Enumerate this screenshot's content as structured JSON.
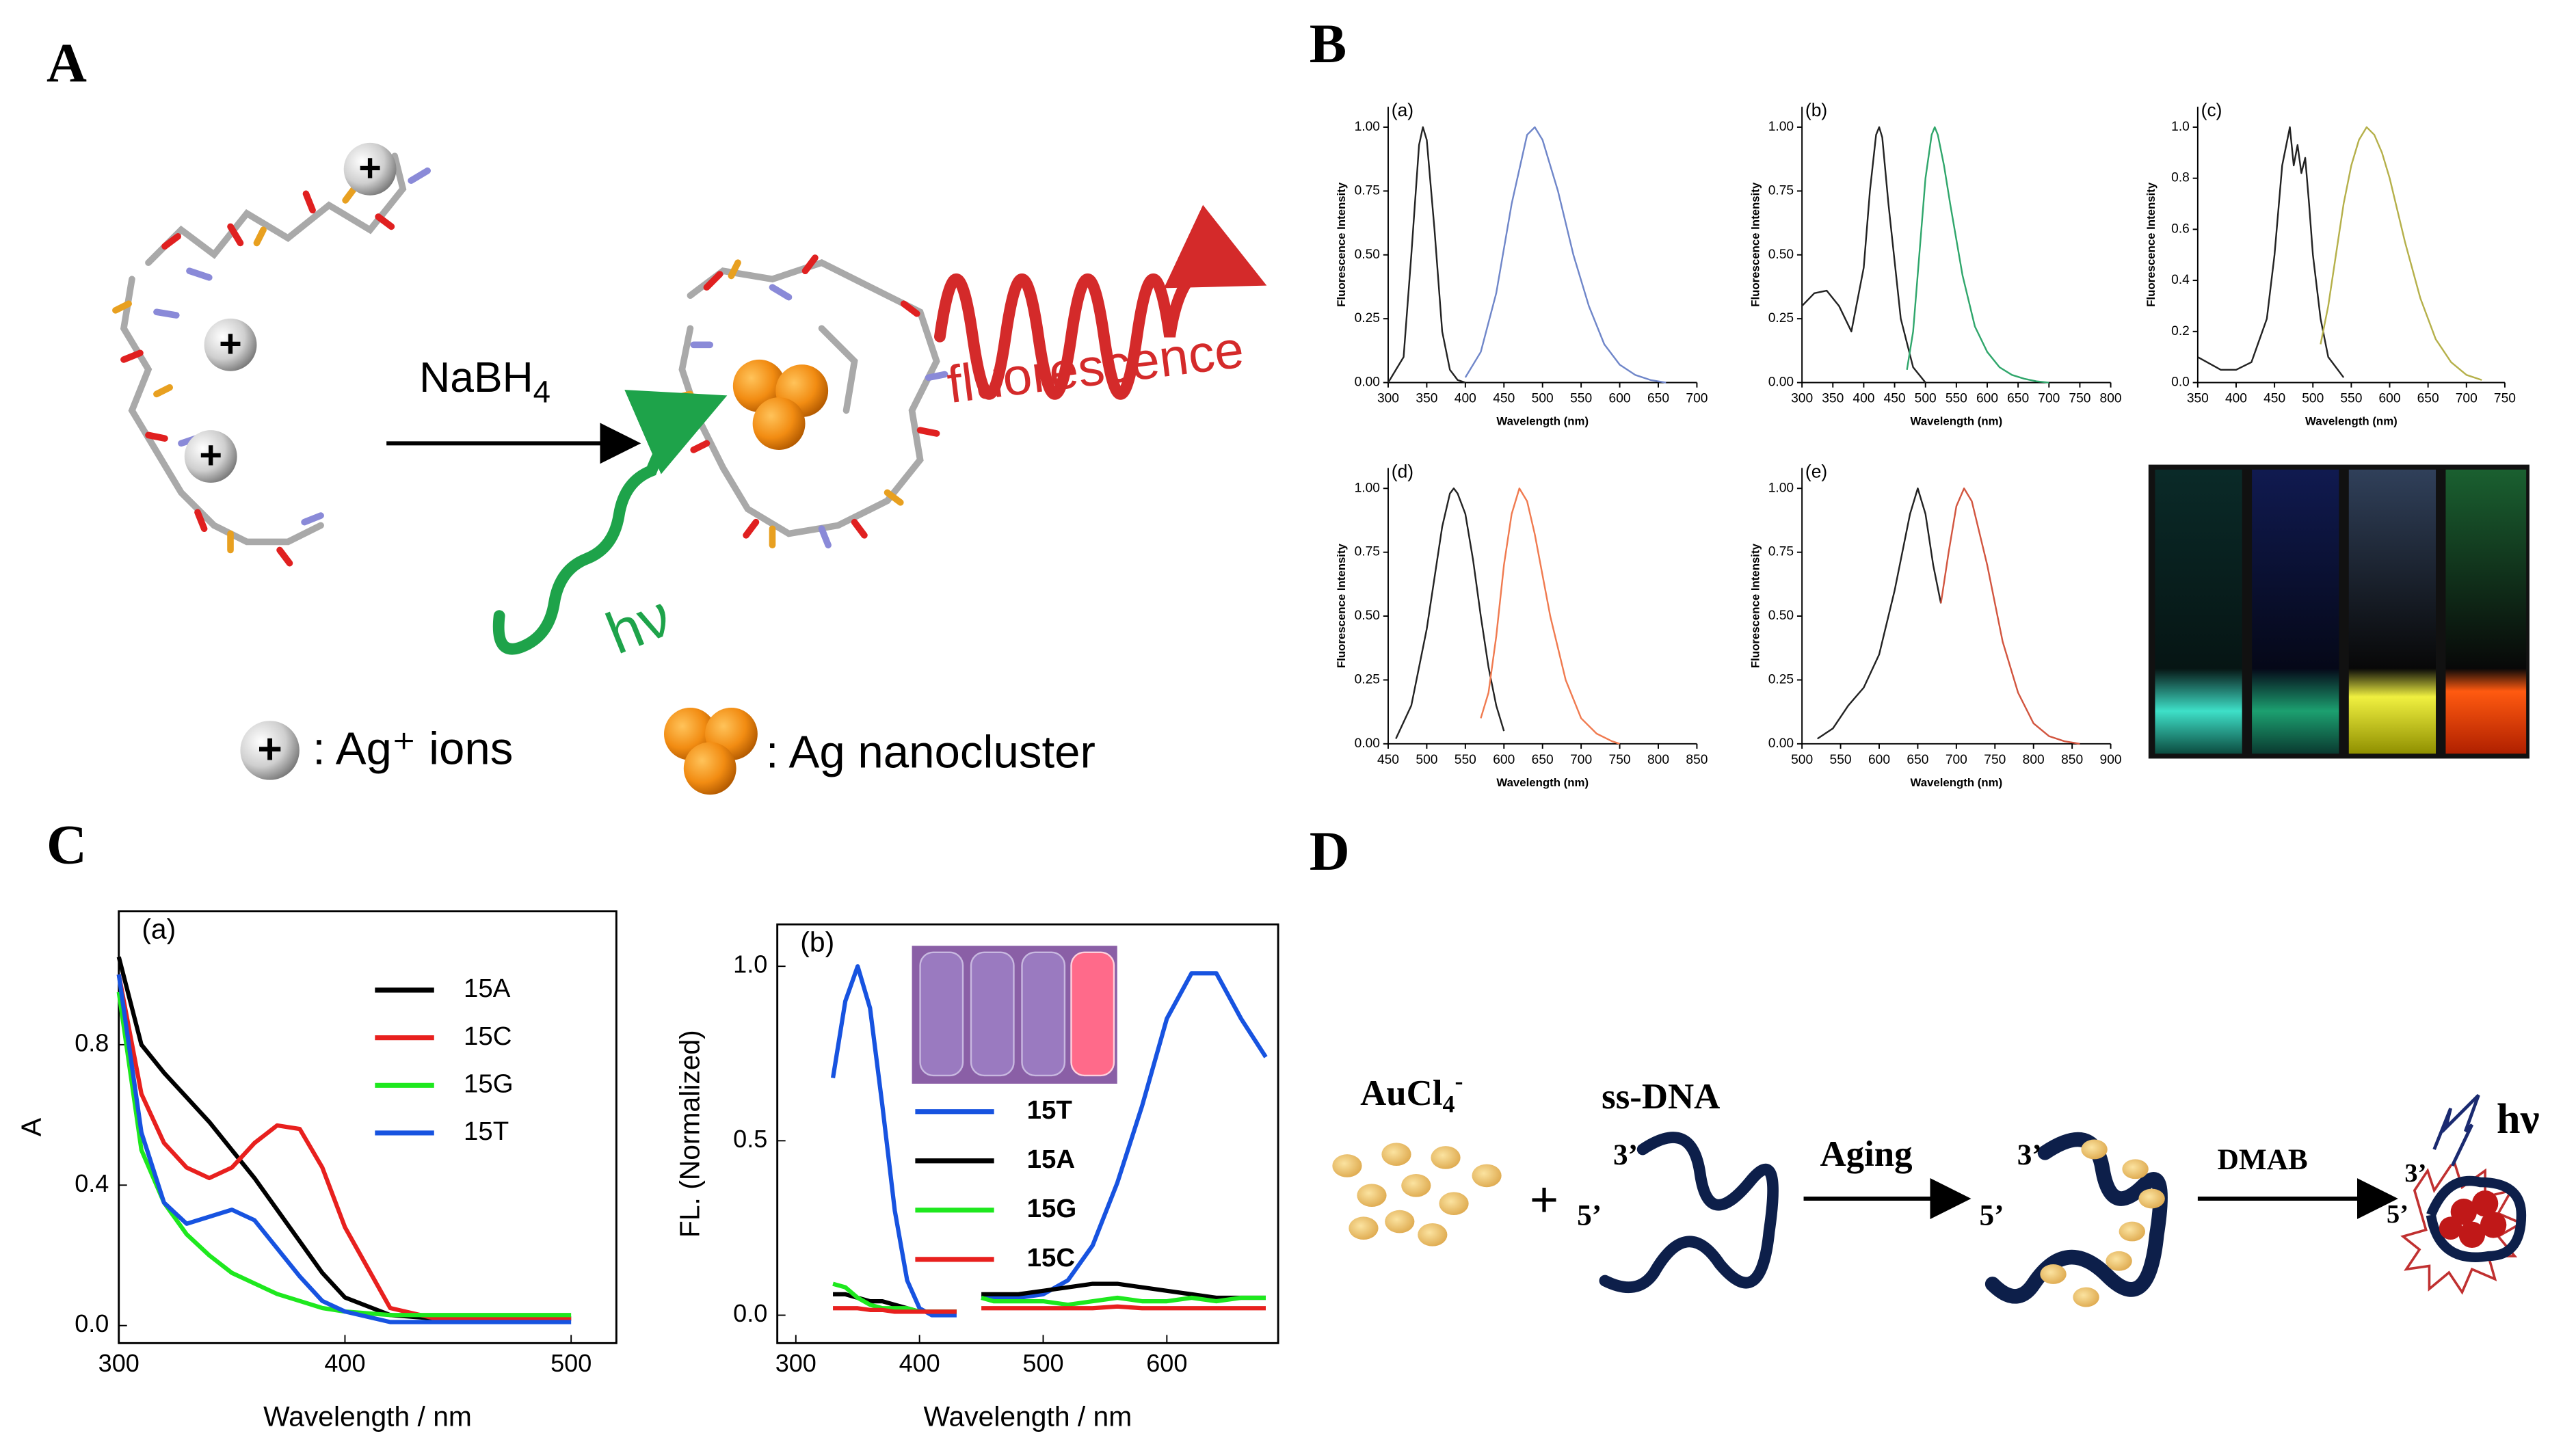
{
  "panel_labels": [
    "A",
    "B",
    "C",
    "D"
  ],
  "panel_a": {
    "reagent": {
      "main": "NaBH",
      "sub": "4"
    },
    "emission": "fluorescence",
    "excitation": "hν",
    "ion_symbol": "+",
    "ion_legend": ": Ag⁺ ions",
    "cluster_legend": ": Ag nanocluster"
  },
  "panel_d": {
    "reagent": {
      "main": "AuCl",
      "sub": "4",
      "sup": "-"
    },
    "plus": "+",
    "strand_label": "ss-DNA",
    "end_3": "3’",
    "end_5": "5’",
    "step1": "Aging",
    "step2": "DMAB",
    "emission": "hν"
  },
  "chart_data": [
    {
      "type": "line",
      "panel_label": "(a)",
      "xlabel": "Wavelength (nm)",
      "ylabel": "Fluorescence Intensity",
      "xlim": [
        300,
        700
      ],
      "xticks": [
        300,
        350,
        400,
        450,
        500,
        550,
        600,
        650,
        700
      ],
      "ylim": [
        0,
        1.08
      ],
      "yticks": [
        {
          "value": 0,
          "label": "0.00"
        },
        {
          "value": 0.25,
          "label": "0.25"
        },
        {
          "value": 0.5,
          "label": "0.50"
        },
        {
          "value": 0.75,
          "label": "0.75"
        },
        {
          "value": 1,
          "label": "1.00"
        }
      ],
      "series": [
        {
          "color": "#222222",
          "x": [
            300,
            320,
            330,
            340,
            345,
            350,
            360,
            370,
            380,
            390,
            400
          ],
          "values": [
            0,
            0.1,
            0.5,
            0.93,
            1.0,
            0.95,
            0.6,
            0.2,
            0.05,
            0.01,
            0
          ]
        },
        {
          "color": "#6f86c9",
          "x": [
            400,
            420,
            440,
            460,
            480,
            490,
            500,
            520,
            540,
            560,
            580,
            600,
            620,
            640,
            660
          ],
          "values": [
            0.02,
            0.12,
            0.35,
            0.7,
            0.97,
            1.0,
            0.95,
            0.75,
            0.5,
            0.3,
            0.15,
            0.07,
            0.03,
            0.01,
            0
          ]
        }
      ]
    },
    {
      "type": "line",
      "panel_label": "(b)",
      "xlabel": "Wavelength (nm)",
      "ylabel": "Fluorescence Intensity",
      "xlim": [
        300,
        800
      ],
      "xticks": [
        300,
        350,
        400,
        450,
        500,
        550,
        600,
        650,
        700,
        750,
        800
      ],
      "ylim": [
        0,
        1.08
      ],
      "yticks": [
        {
          "value": 0,
          "label": "0.00"
        },
        {
          "value": 0.25,
          "label": "0.25"
        },
        {
          "value": 0.5,
          "label": "0.50"
        },
        {
          "value": 0.75,
          "label": "0.75"
        },
        {
          "value": 1,
          "label": "1.00"
        }
      ],
      "series": [
        {
          "color": "#222222",
          "x": [
            300,
            320,
            340,
            360,
            380,
            400,
            410,
            420,
            425,
            430,
            440,
            460,
            480,
            500
          ],
          "values": [
            0.3,
            0.35,
            0.36,
            0.3,
            0.2,
            0.45,
            0.75,
            0.97,
            1.0,
            0.96,
            0.7,
            0.25,
            0.06,
            0
          ]
        },
        {
          "color": "#2fa66b",
          "x": [
            470,
            480,
            490,
            500,
            510,
            515,
            520,
            530,
            540,
            560,
            580,
            600,
            620,
            640,
            660,
            680,
            700
          ],
          "values": [
            0.05,
            0.2,
            0.5,
            0.8,
            0.97,
            1.0,
            0.97,
            0.85,
            0.7,
            0.42,
            0.22,
            0.12,
            0.06,
            0.03,
            0.015,
            0.005,
            0
          ]
        }
      ]
    },
    {
      "type": "line",
      "panel_label": "(c)",
      "xlabel": "Wavelength (nm)",
      "ylabel": "Fluorescence Intensity",
      "xlim": [
        350,
        750
      ],
      "xticks": [
        350,
        400,
        450,
        500,
        550,
        600,
        650,
        700,
        750
      ],
      "ylim": [
        0,
        1.08
      ],
      "yticks": [
        {
          "value": 0,
          "label": "0.0"
        },
        {
          "value": 0.2,
          "label": "0.2"
        },
        {
          "value": 0.4,
          "label": "0.4"
        },
        {
          "value": 0.6,
          "label": "0.6"
        },
        {
          "value": 0.8,
          "label": "0.8"
        },
        {
          "value": 1,
          "label": "1.0"
        }
      ],
      "series": [
        {
          "color": "#222222",
          "x": [
            350,
            380,
            400,
            420,
            440,
            450,
            460,
            470,
            475,
            480,
            485,
            490,
            495,
            500,
            510,
            520,
            540
          ],
          "values": [
            0.1,
            0.05,
            0.05,
            0.08,
            0.25,
            0.5,
            0.85,
            1.0,
            0.85,
            0.93,
            0.82,
            0.88,
            0.7,
            0.5,
            0.25,
            0.1,
            0.02
          ]
        },
        {
          "color": "#b5b04a",
          "x": [
            510,
            520,
            530,
            540,
            550,
            560,
            570,
            580,
            590,
            600,
            620,
            640,
            660,
            680,
            700,
            720
          ],
          "values": [
            0.15,
            0.3,
            0.5,
            0.7,
            0.85,
            0.95,
            1.0,
            0.97,
            0.9,
            0.8,
            0.55,
            0.33,
            0.17,
            0.08,
            0.03,
            0.01
          ]
        }
      ]
    },
    {
      "type": "line",
      "panel_label": "(d)",
      "xlabel": "Wavelength (nm)",
      "ylabel": "Fluorescence Intensity",
      "xlim": [
        450,
        850
      ],
      "xticks": [
        450,
        500,
        550,
        600,
        650,
        700,
        750,
        800,
        850
      ],
      "ylim": [
        0,
        1.08
      ],
      "yticks": [
        {
          "value": 0,
          "label": "0.00"
        },
        {
          "value": 0.25,
          "label": "0.25"
        },
        {
          "value": 0.5,
          "label": "0.50"
        },
        {
          "value": 0.75,
          "label": "0.75"
        },
        {
          "value": 1,
          "label": "1.00"
        }
      ],
      "series": [
        {
          "color": "#222222",
          "x": [
            460,
            480,
            500,
            510,
            520,
            530,
            535,
            540,
            550,
            560,
            570,
            580,
            590,
            600
          ],
          "values": [
            0.02,
            0.15,
            0.45,
            0.65,
            0.85,
            0.98,
            1.0,
            0.98,
            0.9,
            0.72,
            0.5,
            0.3,
            0.15,
            0.05
          ]
        },
        {
          "color": "#f07a4f",
          "x": [
            570,
            580,
            590,
            600,
            610,
            620,
            630,
            640,
            660,
            680,
            700,
            720,
            740,
            750
          ],
          "values": [
            0.1,
            0.2,
            0.42,
            0.7,
            0.9,
            1.0,
            0.95,
            0.82,
            0.5,
            0.25,
            0.1,
            0.04,
            0.01,
            0
          ]
        }
      ]
    },
    {
      "type": "line",
      "panel_label": "(e)",
      "xlabel": "Wavelength (nm)",
      "ylabel": "Fluorescence Intensity",
      "xlim": [
        500,
        900
      ],
      "xticks": [
        500,
        550,
        600,
        650,
        700,
        750,
        800,
        850,
        900
      ],
      "ylim": [
        0,
        1.08
      ],
      "yticks": [
        {
          "value": 0,
          "label": "0.00"
        },
        {
          "value": 0.25,
          "label": "0.25"
        },
        {
          "value": 0.5,
          "label": "0.50"
        },
        {
          "value": 0.75,
          "label": "0.75"
        },
        {
          "value": 1,
          "label": "1.00"
        }
      ],
      "series": [
        {
          "color": "#222222",
          "x": [
            520,
            540,
            560,
            580,
            600,
            620,
            640,
            650,
            660,
            670,
            680
          ],
          "values": [
            0.02,
            0.06,
            0.15,
            0.22,
            0.35,
            0.6,
            0.9,
            1.0,
            0.9,
            0.7,
            0.55
          ]
        },
        {
          "color": "#d2553f",
          "x": [
            680,
            690,
            700,
            710,
            720,
            740,
            760,
            780,
            800,
            820,
            840,
            860
          ],
          "values": [
            0.55,
            0.75,
            0.93,
            1.0,
            0.95,
            0.7,
            0.4,
            0.2,
            0.08,
            0.03,
            0.01,
            0
          ]
        }
      ]
    },
    {
      "type": "line",
      "panel_label": "(a)",
      "xlabel": "Wavelength / nm",
      "ylabel": "A",
      "xlim": [
        300,
        520
      ],
      "xticks": [
        300,
        400,
        500
      ],
      "ylim": [
        -0.05,
        1.18
      ],
      "yticks": [
        {
          "value": 0,
          "label": "0.0"
        },
        {
          "value": 0.4,
          "label": "0.4"
        },
        {
          "value": 0.8,
          "label": "0.8"
        }
      ],
      "x": [
        300,
        310,
        320,
        330,
        340,
        350,
        360,
        370,
        380,
        390,
        400,
        420,
        440,
        460,
        480,
        500
      ],
      "series": [
        {
          "name": "15A",
          "color": "#000000",
          "values": [
            1.05,
            0.8,
            0.72,
            0.65,
            0.58,
            0.5,
            0.42,
            0.33,
            0.24,
            0.15,
            0.08,
            0.03,
            0.02,
            0.02,
            0.02,
            0.02
          ]
        },
        {
          "name": "15C",
          "color": "#e8201e",
          "values": [
            1.0,
            0.66,
            0.52,
            0.45,
            0.42,
            0.45,
            0.52,
            0.57,
            0.56,
            0.45,
            0.28,
            0.05,
            0.02,
            0.02,
            0.02,
            0.02
          ]
        },
        {
          "name": "15G",
          "color": "#1ee81e",
          "values": [
            0.95,
            0.5,
            0.35,
            0.26,
            0.2,
            0.15,
            0.12,
            0.09,
            0.07,
            0.05,
            0.04,
            0.03,
            0.03,
            0.03,
            0.03,
            0.03
          ]
        },
        {
          "name": "15T",
          "color": "#1753e0",
          "values": [
            1.0,
            0.55,
            0.35,
            0.29,
            0.31,
            0.33,
            0.3,
            0.22,
            0.14,
            0.07,
            0.04,
            0.01,
            0.01,
            0.01,
            0.01,
            0.01
          ]
        }
      ]
    },
    {
      "type": "line",
      "panel_label": "(b)",
      "xlabel": "Wavelength / nm",
      "ylabel": "FL. (Normalized)",
      "xlim": [
        285,
        690
      ],
      "xticks": [
        300,
        400,
        500,
        600
      ],
      "ylim": [
        -0.08,
        1.12
      ],
      "yticks": [
        {
          "value": 0,
          "label": "0.0"
        },
        {
          "value": 0.5,
          "label": "0.5"
        },
        {
          "value": 1,
          "label": "1.0"
        }
      ],
      "x": [
        330,
        340,
        350,
        360,
        370,
        380,
        390,
        400,
        410,
        420,
        430,
        440,
        450,
        460,
        480,
        500,
        520,
        540,
        560,
        580,
        600,
        620,
        640,
        660,
        680
      ],
      "series": [
        {
          "name": "15T",
          "color": "#1753e0",
          "values": [
            0.68,
            0.9,
            1.0,
            0.88,
            0.6,
            0.3,
            0.1,
            0.02,
            0.0,
            0.0,
            0.0,
            null,
            0.05,
            0.05,
            0.05,
            0.06,
            0.1,
            0.2,
            0.38,
            0.6,
            0.85,
            0.98,
            0.98,
            0.85,
            0.74
          ]
        },
        {
          "name": "15A",
          "color": "#000000",
          "values": [
            0.06,
            0.06,
            0.05,
            0.04,
            0.04,
            0.03,
            0.02,
            0.01,
            0.01,
            0.01,
            0.01,
            null,
            0.06,
            0.06,
            0.06,
            0.07,
            0.08,
            0.09,
            0.09,
            0.08,
            0.07,
            0.06,
            0.05,
            0.05,
            0.05
          ]
        },
        {
          "name": "15G",
          "color": "#1ee81e",
          "values": [
            0.09,
            0.08,
            0.05,
            0.03,
            0.02,
            0.02,
            0.02,
            0.01,
            0.01,
            0.01,
            0.01,
            null,
            0.05,
            0.04,
            0.04,
            0.04,
            0.03,
            0.04,
            0.05,
            0.04,
            0.04,
            0.05,
            0.04,
            0.05,
            0.05
          ]
        },
        {
          "name": "15C",
          "color": "#e8201e",
          "values": [
            0.02,
            0.02,
            0.02,
            0.015,
            0.015,
            0.01,
            0.01,
            0.01,
            0.01,
            0.01,
            0.01,
            null,
            0.02,
            0.02,
            0.02,
            0.02,
            0.02,
            0.02,
            0.025,
            0.02,
            0.02,
            0.02,
            0.02,
            0.02,
            0.02
          ]
        }
      ]
    }
  ]
}
